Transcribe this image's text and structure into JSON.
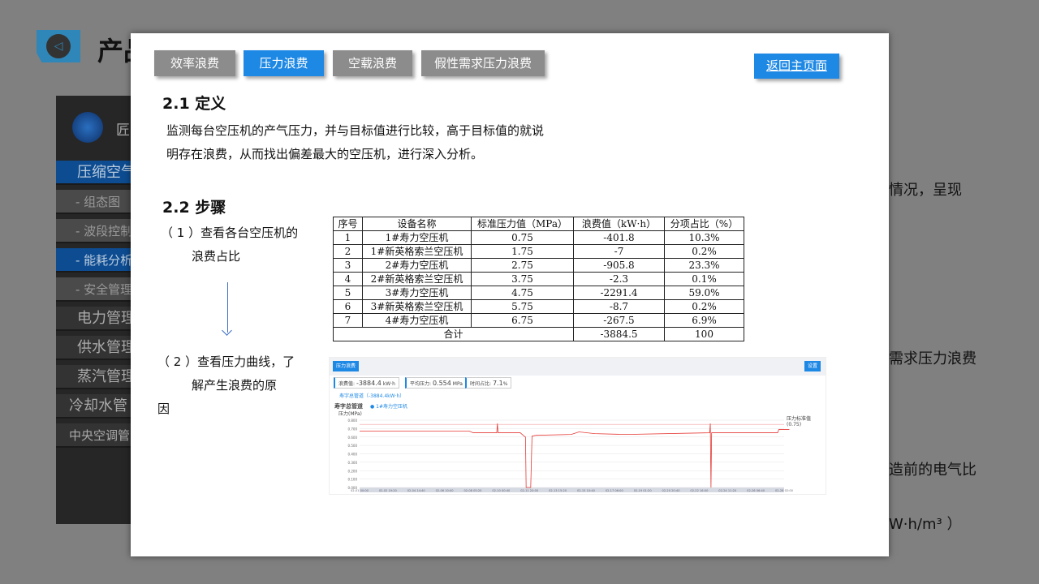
{
  "header": {
    "title": "产品",
    "icon": "back-arrow-icon"
  },
  "sidebar": {
    "brand": "匠",
    "items": [
      {
        "label": "压缩空气",
        "type": "main",
        "active": true
      },
      {
        "label": "- 组态图",
        "type": "sub"
      },
      {
        "label": "- 波段控制",
        "type": "sub"
      },
      {
        "label": "- 能耗分析",
        "type": "sub",
        "active": true
      },
      {
        "label": "- 安全管理",
        "type": "sub"
      },
      {
        "label": "电力管理",
        "type": "main"
      },
      {
        "label": "供水管理",
        "type": "main"
      },
      {
        "label": "蒸汽管理",
        "type": "main"
      },
      {
        "label": "冷却水管",
        "type": "main"
      },
      {
        "label": "中央空调管",
        "type": "main"
      }
    ]
  },
  "background_text": [
    "情况，呈现",
    "需求压力浪费",
    "造前的电气比",
    "W·h/m³ ）"
  ],
  "modal": {
    "tabs": [
      {
        "label": "效率浪费"
      },
      {
        "label": "压力浪费",
        "active": true
      },
      {
        "label": "空载浪费"
      },
      {
        "label": "假性需求压力浪费"
      }
    ],
    "back_label": "返回主页面",
    "def_title": "2.1 定义",
    "def_lines": [
      "监测每台空压机的产气压力，并与目标值进行比较，高于目标值的就说",
      "明存在浪费，从而找出偏差最大的空压机，进行深入分析。"
    ],
    "steps_title": "2.2 步骤",
    "step1": [
      "（ 1 ）查看各台空压机的",
      "浪费占比"
    ],
    "step2": [
      "（ 2 ）查看压力曲线，了",
      "解产生浪费的原",
      "因"
    ],
    "table": {
      "headers": [
        "序号",
        "设备名称",
        "标准压力值（MPa）",
        "浪费值（kW·h）",
        "分项占比（%）"
      ],
      "rows": [
        [
          "1",
          "1#寿力空压机",
          "0.75",
          "-401.8",
          "10.3%"
        ],
        [
          "2",
          "1#新英格索兰空压机",
          "1.75",
          "-7",
          "0.2%"
        ],
        [
          "3",
          "2#寿力空压机",
          "2.75",
          "-905.8",
          "23.3%"
        ],
        [
          "4",
          "2#新英格索兰空压机",
          "3.75",
          "-2.3",
          "0.1%"
        ],
        [
          "5",
          "3#寿力空压机",
          "4.75",
          "-2291.4",
          "59.0%"
        ],
        [
          "6",
          "3#新英格索兰空压机",
          "5.75",
          "-8.7",
          "0.2%"
        ],
        [
          "7",
          "4#寿力空压机",
          "6.75",
          "-267.5",
          "6.9%"
        ]
      ],
      "total": [
        "合计",
        "-3884.5",
        "100"
      ]
    },
    "screenshot": {
      "title_btn": "压力浪费",
      "settings_btn": "设置",
      "kpis": [
        {
          "label": "浪费值:",
          "value": "-3884.4",
          "unit": "kW·h"
        },
        {
          "label": "平均压力:",
          "value": "0.554",
          "unit": "MPa"
        },
        {
          "label": "时间占比:",
          "value": "7.1",
          "unit": "%"
        }
      ],
      "sub_link": "寿字总管道（-3884.4kW·h）",
      "chart_title": "寿字总管道",
      "legend_first": "1#寿力空压机",
      "target_label": "压力标准值",
      "target_value": "(0.75)"
    }
  },
  "chart_data": {
    "type": "line",
    "ylabel": "压力(MPa)",
    "ylim": [
      0,
      0.8
    ],
    "yticks": [
      "0.000",
      "0.100",
      "0.200",
      "0.300",
      "0.400",
      "0.500",
      "0.600",
      "0.700",
      "0.800"
    ],
    "xticks": [
      "02-01 00:00",
      "02-02 19:20",
      "02-04 14:40",
      "02-06 10:00",
      "02-08 05:20",
      "02-10 00:40",
      "02-11 20:00",
      "02-13 15:20",
      "02-15 10:40",
      "02-17 06:00",
      "02-19 01:20",
      "02-20 20:40",
      "02-22 16:00",
      "02-24 11:20",
      "02-26 06:40",
      "02-28 02:00"
    ],
    "target": 0.75,
    "line_color": "#e53935",
    "points": [
      [
        "02-01 00:00",
        0.67
      ],
      [
        "02-08 00:00",
        0.67
      ],
      [
        "02-08 06:00",
        0.65
      ],
      [
        "02-09 18:00",
        0.65
      ],
      [
        "02-09 19:00",
        0.76
      ],
      [
        "02-09 20:00",
        0.65
      ],
      [
        "02-11 06:00",
        0.65
      ],
      [
        "02-11 12:00",
        0.61
      ],
      [
        "02-11 14:00",
        0.6
      ],
      [
        "02-11 15:00",
        0
      ],
      [
        "02-11 22:00",
        0
      ],
      [
        "02-12 00:00",
        0.61
      ],
      [
        "02-12 06:00",
        0.62
      ],
      [
        "02-14 12:00",
        0.63
      ],
      [
        "02-15 00:00",
        0.66
      ],
      [
        "02-16 00:00",
        0.64
      ],
      [
        "02-18 00:00",
        0.63
      ],
      [
        "02-23 08:00",
        0.65
      ],
      [
        "02-23 09:00",
        0.76
      ],
      [
        "02-23 10:00",
        0
      ],
      [
        "02-23 11:00",
        0.65
      ],
      [
        "02-27 16:00",
        0.65
      ],
      [
        "02-27 18:00",
        0.69
      ],
      [
        "02-28 10:00",
        0.69
      ]
    ]
  }
}
